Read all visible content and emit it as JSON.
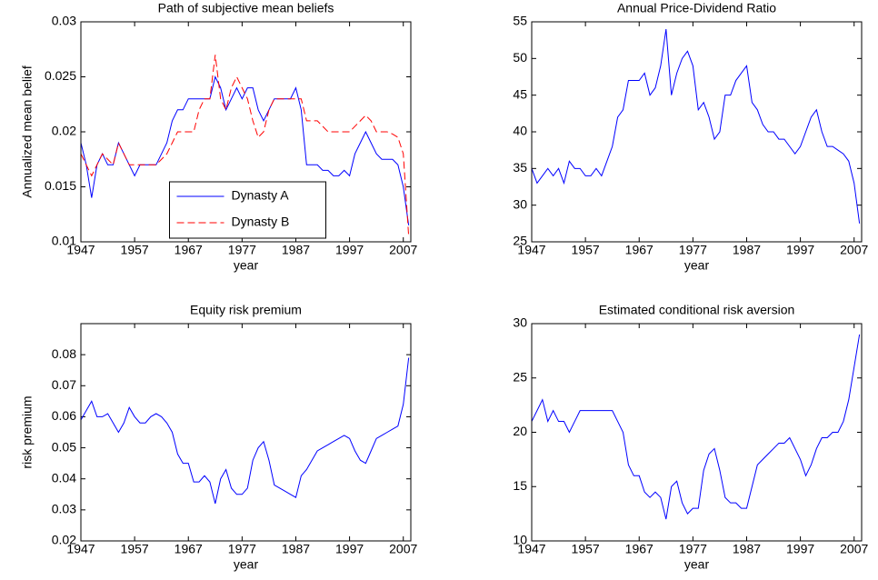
{
  "chart_data": [
    {
      "type": "line",
      "title": "Path of subjective mean beliefs",
      "xlabel": "year",
      "ylabel": "Annualized mean belief",
      "x": [
        1947,
        1948,
        1949,
        1950,
        1951,
        1952,
        1953,
        1954,
        1955,
        1956,
        1957,
        1958,
        1959,
        1960,
        1961,
        1962,
        1963,
        1964,
        1965,
        1966,
        1967,
        1968,
        1969,
        1970,
        1971,
        1972,
        1973,
        1974,
        1975,
        1976,
        1977,
        1978,
        1979,
        1980,
        1981,
        1982,
        1983,
        1984,
        1985,
        1986,
        1987,
        1988,
        1989,
        1990,
        1991,
        1992,
        1993,
        1994,
        1995,
        1996,
        1997,
        1998,
        1999,
        2000,
        2001,
        2002,
        2003,
        2004,
        2005,
        2006,
        2007,
        2008
      ],
      "xlim": [
        1947,
        2008.4
      ],
      "xticks": [
        1947,
        1957,
        1967,
        1977,
        1987,
        1997,
        2007
      ],
      "ylim": [
        0.01,
        0.03
      ],
      "yticks": [
        0.01,
        0.015,
        0.02,
        0.025,
        0.03
      ],
      "legend": "lower center",
      "series": [
        {
          "name": "Dynasty A",
          "color": "#0000ff",
          "line_style": "solid",
          "values": [
            0.019,
            0.017,
            0.014,
            0.017,
            0.018,
            0.017,
            0.017,
            0.019,
            0.018,
            0.017,
            0.016,
            0.017,
            0.017,
            0.017,
            0.017,
            0.018,
            0.019,
            0.021,
            0.022,
            0.022,
            0.023,
            0.023,
            0.023,
            0.023,
            0.023,
            0.025,
            0.024,
            0.022,
            0.023,
            0.024,
            0.023,
            0.024,
            0.024,
            0.022,
            0.021,
            0.022,
            0.023,
            0.023,
            0.023,
            0.023,
            0.024,
            0.022,
            0.017,
            0.017,
            0.017,
            0.0165,
            0.0165,
            0.016,
            0.016,
            0.0165,
            0.016,
            0.018,
            0.019,
            0.02,
            0.019,
            0.018,
            0.0175,
            0.0175,
            0.0175,
            0.017,
            0.015,
            0.0115
          ]
        },
        {
          "name": "Dynasty B",
          "color": "#ff0000",
          "line_style": "dashed",
          "values": [
            0.018,
            0.017,
            0.016,
            0.017,
            0.018,
            0.0175,
            0.017,
            0.019,
            0.018,
            0.017,
            0.017,
            0.017,
            0.017,
            0.017,
            0.017,
            0.0175,
            0.018,
            0.019,
            0.02,
            0.02,
            0.02,
            0.02,
            0.022,
            0.023,
            0.023,
            0.027,
            0.023,
            0.022,
            0.024,
            0.025,
            0.024,
            0.023,
            0.021,
            0.0195,
            0.02,
            0.022,
            0.023,
            0.023,
            0.023,
            0.023,
            0.023,
            0.023,
            0.021,
            0.021,
            0.021,
            0.0205,
            0.02,
            0.02,
            0.02,
            0.02,
            0.02,
            0.0205,
            0.021,
            0.0215,
            0.021,
            0.02,
            0.02,
            0.02,
            0.0198,
            0.0195,
            0.018,
            0.0105
          ]
        }
      ]
    },
    {
      "type": "line",
      "title": "Annual Price-Dividend Ratio",
      "xlabel": "year",
      "x": [
        1947,
        1948,
        1949,
        1950,
        1951,
        1952,
        1953,
        1954,
        1955,
        1956,
        1957,
        1958,
        1959,
        1960,
        1961,
        1962,
        1963,
        1964,
        1965,
        1966,
        1967,
        1968,
        1969,
        1970,
        1971,
        1972,
        1973,
        1974,
        1975,
        1976,
        1977,
        1978,
        1979,
        1980,
        1981,
        1982,
        1983,
        1984,
        1985,
        1986,
        1987,
        1988,
        1989,
        1990,
        1991,
        1992,
        1993,
        1994,
        1995,
        1996,
        1997,
        1998,
        1999,
        2000,
        2001,
        2002,
        2003,
        2004,
        2005,
        2006,
        2007,
        2008
      ],
      "xlim": [
        1947,
        2008.4
      ],
      "xticks": [
        1947,
        1957,
        1967,
        1977,
        1987,
        1997,
        2007
      ],
      "ylim": [
        25,
        55
      ],
      "yticks": [
        25,
        30,
        35,
        40,
        45,
        50,
        55
      ],
      "series": [
        {
          "color": "#0000ff",
          "line_style": "solid",
          "values": [
            35,
            33,
            34,
            35,
            34,
            35,
            33,
            36,
            35,
            35,
            34,
            34,
            35,
            34,
            36,
            38,
            42,
            43,
            47,
            47,
            47,
            48,
            45,
            46,
            49,
            54,
            45,
            48,
            50,
            51,
            49,
            43,
            44,
            42,
            39,
            40,
            45,
            45,
            47,
            48,
            49,
            44,
            43,
            41,
            40,
            40,
            39,
            39,
            38,
            37,
            38,
            40,
            42,
            43,
            40,
            38,
            38,
            37.5,
            37,
            36,
            33,
            27.5
          ]
        }
      ]
    },
    {
      "type": "line",
      "title": "Equity risk premium",
      "xlabel": "year",
      "ylabel": "risk premium",
      "x": [
        1947,
        1948,
        1949,
        1950,
        1951,
        1952,
        1953,
        1954,
        1955,
        1956,
        1957,
        1958,
        1959,
        1960,
        1961,
        1962,
        1963,
        1964,
        1965,
        1966,
        1967,
        1968,
        1969,
        1970,
        1971,
        1972,
        1973,
        1974,
        1975,
        1976,
        1977,
        1978,
        1979,
        1980,
        1981,
        1982,
        1983,
        1984,
        1985,
        1986,
        1987,
        1988,
        1989,
        1990,
        1991,
        1992,
        1993,
        1994,
        1995,
        1996,
        1997,
        1998,
        1999,
        2000,
        2001,
        2002,
        2003,
        2004,
        2005,
        2006,
        2007,
        2008
      ],
      "xlim": [
        1947,
        2008.4
      ],
      "xticks": [
        1947,
        1957,
        1967,
        1977,
        1987,
        1997,
        2007
      ],
      "ylim": [
        0.02,
        0.09
      ],
      "yticks": [
        0.02,
        0.03,
        0.04,
        0.05,
        0.06,
        0.07,
        0.08
      ],
      "series": [
        {
          "color": "#0000ff",
          "line_style": "solid",
          "values": [
            0.059,
            0.062,
            0.065,
            0.06,
            0.06,
            0.061,
            0.058,
            0.055,
            0.058,
            0.063,
            0.06,
            0.058,
            0.058,
            0.06,
            0.061,
            0.06,
            0.058,
            0.055,
            0.048,
            0.045,
            0.045,
            0.039,
            0.039,
            0.041,
            0.039,
            0.032,
            0.04,
            0.043,
            0.037,
            0.035,
            0.035,
            0.037,
            0.046,
            0.05,
            0.052,
            0.046,
            0.038,
            0.037,
            0.036,
            0.035,
            0.034,
            0.041,
            0.043,
            0.046,
            0.049,
            0.05,
            0.051,
            0.052,
            0.053,
            0.054,
            0.053,
            0.049,
            0.046,
            0.045,
            0.049,
            0.053,
            0.054,
            0.055,
            0.056,
            0.057,
            0.064,
            0.079
          ]
        }
      ]
    },
    {
      "type": "line",
      "title": "Estimated conditional risk aversion",
      "xlabel": "year",
      "x": [
        1947,
        1948,
        1949,
        1950,
        1951,
        1952,
        1953,
        1954,
        1955,
        1956,
        1957,
        1958,
        1959,
        1960,
        1961,
        1962,
        1963,
        1964,
        1965,
        1966,
        1967,
        1968,
        1969,
        1970,
        1971,
        1972,
        1973,
        1974,
        1975,
        1976,
        1977,
        1978,
        1979,
        1980,
        1981,
        1982,
        1983,
        1984,
        1985,
        1986,
        1987,
        1988,
        1989,
        1990,
        1991,
        1992,
        1993,
        1994,
        1995,
        1996,
        1997,
        1998,
        1999,
        2000,
        2001,
        2002,
        2003,
        2004,
        2005,
        2006,
        2007,
        2008
      ],
      "xlim": [
        1947,
        2008.4
      ],
      "xticks": [
        1947,
        1957,
        1967,
        1977,
        1987,
        1997,
        2007
      ],
      "ylim": [
        10,
        30
      ],
      "yticks": [
        10,
        15,
        20,
        25,
        30
      ],
      "series": [
        {
          "color": "#0000ff",
          "line_style": "solid",
          "values": [
            21,
            22,
            23,
            21,
            22,
            21,
            21,
            20,
            21,
            22,
            22,
            22,
            22,
            22,
            22,
            22,
            21,
            20,
            17,
            16,
            16,
            14.5,
            14,
            14.5,
            14,
            12,
            15,
            15.5,
            13.5,
            12.5,
            13,
            13,
            16.5,
            18,
            18.5,
            16.5,
            14,
            13.5,
            13.5,
            13,
            13,
            15,
            17,
            17.5,
            18,
            18.5,
            19,
            19,
            19.5,
            18.5,
            17.5,
            16,
            17,
            18.5,
            19.5,
            19.5,
            20,
            20,
            21,
            23,
            26,
            29
          ]
        }
      ]
    }
  ]
}
